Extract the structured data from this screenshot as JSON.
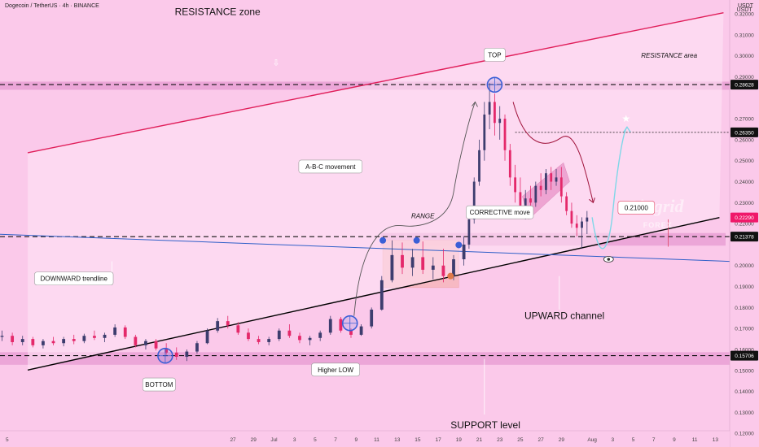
{
  "header": {
    "symbol_title": "Dogecoin / TetherUS · 4h · BINANCE",
    "currency": "USDT"
  },
  "colors": {
    "background": "#fbc9ea",
    "zone_fill": "#e79ad2",
    "candle_up": "#3d3d6e",
    "candle_down": "#e4286a",
    "resistance_line": "#e01e5a",
    "channel_line": "#000000",
    "downtrend_line": "#2f5fc8",
    "marker_blue": "#3b5fd6",
    "projection": "#7fd7e8"
  },
  "chart_data": {
    "type": "candlestick",
    "title": "Dogecoin / TetherUS · 4h · BINANCE",
    "y_axis": {
      "unit": "USDT",
      "ylim": [
        0.1135,
        0.3266
      ],
      "ticks": [
        0.32,
        0.31,
        0.3,
        0.29,
        0.27,
        0.26,
        0.25,
        0.24,
        0.23,
        0.22,
        0.2,
        0.19,
        0.18,
        0.17,
        0.16,
        0.15,
        0.14,
        0.13,
        0.12
      ],
      "tick_labels": [
        "0.32000",
        "0.31000",
        "0.30000",
        "0.29000",
        "0.27000",
        "0.26000",
        "0.25000",
        "0.24000",
        "0.23000",
        "0.22000",
        "0.20000",
        "0.19000",
        "0.18000",
        "0.17000",
        "0.16000",
        "0.15000",
        "0.14000",
        "0.13000",
        "0.12000"
      ]
    },
    "x_axis": {
      "tick_labels": [
        "5",
        "27",
        "29",
        "Jul",
        "3",
        "5",
        "7",
        "9",
        "11",
        "13",
        "15",
        "17",
        "19",
        "21",
        "23",
        "25",
        "27",
        "29",
        "Aug",
        "3",
        "5",
        "7",
        "9",
        "11",
        "13"
      ],
      "tick_day_index": [
        -26,
        -4,
        -2,
        0,
        2,
        4,
        6,
        8,
        10,
        12,
        14,
        16,
        18,
        20,
        22,
        24,
        26,
        28,
        31,
        33,
        35,
        37,
        39,
        41,
        43
      ],
      "x_range_days": [
        -26.7,
        44.4
      ]
    },
    "price_labels": [
      {
        "value": 0.28628,
        "text": "0.28628",
        "style": "black"
      },
      {
        "value": 0.2635,
        "text": "0.26350",
        "style": "black"
      },
      {
        "value": 0.2229,
        "text": "0.22290",
        "style": "red"
      },
      {
        "value": 0.21378,
        "text": "0.21378",
        "style": "black"
      },
      {
        "value": 0.15706,
        "text": "0.15706",
        "style": "black"
      }
    ],
    "horizontal_levels": [
      {
        "value": 0.28628,
        "style": "dashed"
      },
      {
        "value": 0.2635,
        "style": "dotted"
      },
      {
        "value": 0.21378,
        "style": "dashed"
      },
      {
        "value": 0.15706,
        "style": "dashed"
      }
    ],
    "zones": [
      {
        "name": "resistance band",
        "from": 0.2838,
        "to": 0.2877
      },
      {
        "name": "support band",
        "from": 0.1527,
        "to": 0.1587
      },
      {
        "name": "breakout band",
        "from": 0.2095,
        "to": 0.2155
      },
      {
        "name": "range box",
        "from": 0.1895,
        "to": 0.2121
      }
    ],
    "trendlines": [
      {
        "name": "resistance line",
        "points": [
          [
            -24,
            0.2538
          ],
          [
            43.8,
            0.3205
          ]
        ]
      },
      {
        "name": "upward channel",
        "points": [
          [
            -24,
            0.1502
          ],
          [
            43.4,
            0.2229
          ]
        ]
      },
      {
        "name": "downward trendline",
        "points": [
          [
            -26.7,
            0.2149
          ],
          [
            44.4,
            0.202
          ]
        ]
      }
    ],
    "candles": [
      {
        "d": -26.5,
        "o": 0.166,
        "h": 0.169,
        "l": 0.164,
        "c": 0.1665
      },
      {
        "d": -25.5,
        "o": 0.1665,
        "h": 0.168,
        "l": 0.162,
        "c": 0.1635
      },
      {
        "d": -24.5,
        "o": 0.1635,
        "h": 0.1665,
        "l": 0.162,
        "c": 0.165
      },
      {
        "d": -23.5,
        "o": 0.165,
        "h": 0.166,
        "l": 0.161,
        "c": 0.162
      },
      {
        "d": -22.5,
        "o": 0.162,
        "h": 0.165,
        "l": 0.1605,
        "c": 0.164
      },
      {
        "d": -21.5,
        "o": 0.164,
        "h": 0.166,
        "l": 0.162,
        "c": 0.163
      },
      {
        "d": -20.5,
        "o": 0.163,
        "h": 0.166,
        "l": 0.1615,
        "c": 0.165
      },
      {
        "d": -19.5,
        "o": 0.165,
        "h": 0.167,
        "l": 0.1625,
        "c": 0.164
      },
      {
        "d": -18.5,
        "o": 0.164,
        "h": 0.1675,
        "l": 0.163,
        "c": 0.1665
      },
      {
        "d": -17.5,
        "o": 0.1665,
        "h": 0.169,
        "l": 0.1645,
        "c": 0.1655
      },
      {
        "d": -16.5,
        "o": 0.1655,
        "h": 0.168,
        "l": 0.1635,
        "c": 0.167
      },
      {
        "d": -15.5,
        "o": 0.167,
        "h": 0.172,
        "l": 0.166,
        "c": 0.1705
      },
      {
        "d": -14.5,
        "o": 0.1705,
        "h": 0.1715,
        "l": 0.165,
        "c": 0.166
      },
      {
        "d": -13.5,
        "o": 0.166,
        "h": 0.167,
        "l": 0.161,
        "c": 0.162
      },
      {
        "d": -12.5,
        "o": 0.162,
        "h": 0.165,
        "l": 0.16,
        "c": 0.164
      },
      {
        "d": -11.5,
        "o": 0.164,
        "h": 0.165,
        "l": 0.1595,
        "c": 0.1605
      },
      {
        "d": -10.5,
        "o": 0.1605,
        "h": 0.163,
        "l": 0.1575,
        "c": 0.1585
      },
      {
        "d": -9.5,
        "o": 0.1585,
        "h": 0.161,
        "l": 0.155,
        "c": 0.1565
      },
      {
        "d": -8.5,
        "o": 0.1565,
        "h": 0.16,
        "l": 0.1545,
        "c": 0.159
      },
      {
        "d": -7.5,
        "o": 0.159,
        "h": 0.164,
        "l": 0.158,
        "c": 0.163
      },
      {
        "d": -6.5,
        "o": 0.163,
        "h": 0.17,
        "l": 0.1625,
        "c": 0.169
      },
      {
        "d": -5.5,
        "o": 0.169,
        "h": 0.175,
        "l": 0.168,
        "c": 0.1735
      },
      {
        "d": -4.5,
        "o": 0.1735,
        "h": 0.176,
        "l": 0.17,
        "c": 0.1715
      },
      {
        "d": -3.5,
        "o": 0.1715,
        "h": 0.173,
        "l": 0.167,
        "c": 0.168
      },
      {
        "d": -2.5,
        "o": 0.168,
        "h": 0.17,
        "l": 0.164,
        "c": 0.165
      },
      {
        "d": -1.5,
        "o": 0.165,
        "h": 0.1665,
        "l": 0.1625,
        "c": 0.1635
      },
      {
        "d": -0.5,
        "o": 0.1635,
        "h": 0.166,
        "l": 0.162,
        "c": 0.165
      },
      {
        "d": 0.5,
        "o": 0.165,
        "h": 0.17,
        "l": 0.164,
        "c": 0.169
      },
      {
        "d": 1.5,
        "o": 0.169,
        "h": 0.172,
        "l": 0.1655,
        "c": 0.1665
      },
      {
        "d": 2.5,
        "o": 0.1665,
        "h": 0.168,
        "l": 0.163,
        "c": 0.1645
      },
      {
        "d": 3.5,
        "o": 0.1645,
        "h": 0.1665,
        "l": 0.162,
        "c": 0.1655
      },
      {
        "d": 4.5,
        "o": 0.1655,
        "h": 0.169,
        "l": 0.164,
        "c": 0.168
      },
      {
        "d": 5.5,
        "o": 0.168,
        "h": 0.176,
        "l": 0.167,
        "c": 0.1745
      },
      {
        "d": 6.5,
        "o": 0.1745,
        "h": 0.1755,
        "l": 0.168,
        "c": 0.169
      },
      {
        "d": 7.5,
        "o": 0.169,
        "h": 0.17,
        "l": 0.1655,
        "c": 0.167
      },
      {
        "d": 8.5,
        "o": 0.167,
        "h": 0.172,
        "l": 0.1665,
        "c": 0.171
      },
      {
        "d": 9.5,
        "o": 0.171,
        "h": 0.18,
        "l": 0.17,
        "c": 0.179
      },
      {
        "d": 10.5,
        "o": 0.179,
        "h": 0.195,
        "l": 0.1785,
        "c": 0.193
      },
      {
        "d": 11.5,
        "o": 0.193,
        "h": 0.212,
        "l": 0.192,
        "c": 0.205
      },
      {
        "d": 12.5,
        "o": 0.205,
        "h": 0.211,
        "l": 0.196,
        "c": 0.199
      },
      {
        "d": 13.5,
        "o": 0.199,
        "h": 0.208,
        "l": 0.195,
        "c": 0.204
      },
      {
        "d": 14.5,
        "o": 0.204,
        "h": 0.2115,
        "l": 0.196,
        "c": 0.198
      },
      {
        "d": 15.5,
        "o": 0.198,
        "h": 0.204,
        "l": 0.1935,
        "c": 0.2
      },
      {
        "d": 16.5,
        "o": 0.2,
        "h": 0.208,
        "l": 0.192,
        "c": 0.195
      },
      {
        "d": 17.5,
        "o": 0.195,
        "h": 0.205,
        "l": 0.193,
        "c": 0.203
      },
      {
        "d": 18.5,
        "o": 0.203,
        "h": 0.214,
        "l": 0.2,
        "c": 0.21
      },
      {
        "d": 19.0,
        "o": 0.21,
        "h": 0.224,
        "l": 0.208,
        "c": 0.222
      },
      {
        "d": 19.5,
        "o": 0.222,
        "h": 0.242,
        "l": 0.22,
        "c": 0.24
      },
      {
        "d": 20.0,
        "o": 0.24,
        "h": 0.26,
        "l": 0.238,
        "c": 0.255
      },
      {
        "d": 20.5,
        "o": 0.255,
        "h": 0.278,
        "l": 0.25,
        "c": 0.272
      },
      {
        "d": 21.0,
        "o": 0.272,
        "h": 0.287,
        "l": 0.265,
        "c": 0.278
      },
      {
        "d": 21.5,
        "o": 0.278,
        "h": 0.282,
        "l": 0.262,
        "c": 0.268
      },
      {
        "d": 22.0,
        "o": 0.268,
        "h": 0.276,
        "l": 0.26,
        "c": 0.27
      },
      {
        "d": 22.5,
        "o": 0.27,
        "h": 0.272,
        "l": 0.25,
        "c": 0.255
      },
      {
        "d": 23.0,
        "o": 0.255,
        "h": 0.258,
        "l": 0.238,
        "c": 0.242
      },
      {
        "d": 23.5,
        "o": 0.242,
        "h": 0.248,
        "l": 0.23,
        "c": 0.235
      },
      {
        "d": 24.0,
        "o": 0.235,
        "h": 0.242,
        "l": 0.225,
        "c": 0.228
      },
      {
        "d": 24.5,
        "o": 0.228,
        "h": 0.236,
        "l": 0.222,
        "c": 0.232
      },
      {
        "d": 25.0,
        "o": 0.232,
        "h": 0.238,
        "l": 0.226,
        "c": 0.23
      },
      {
        "d": 25.5,
        "o": 0.23,
        "h": 0.24,
        "l": 0.228,
        "c": 0.238
      },
      {
        "d": 26.0,
        "o": 0.238,
        "h": 0.244,
        "l": 0.233,
        "c": 0.236
      },
      {
        "d": 26.5,
        "o": 0.236,
        "h": 0.246,
        "l": 0.234,
        "c": 0.244
      },
      {
        "d": 27.0,
        "o": 0.244,
        "h": 0.247,
        "l": 0.236,
        "c": 0.24
      },
      {
        "d": 27.5,
        "o": 0.24,
        "h": 0.246,
        "l": 0.238,
        "c": 0.242
      },
      {
        "d": 28.0,
        "o": 0.242,
        "h": 0.247,
        "l": 0.23,
        "c": 0.233
      },
      {
        "d": 28.5,
        "o": 0.233,
        "h": 0.235,
        "l": 0.224,
        "c": 0.226
      },
      {
        "d": 29.0,
        "o": 0.226,
        "h": 0.23,
        "l": 0.218,
        "c": 0.22
      },
      {
        "d": 29.5,
        "o": 0.22,
        "h": 0.224,
        "l": 0.214,
        "c": 0.218
      },
      {
        "d": 30.0,
        "o": 0.218,
        "h": 0.223,
        "l": 0.208,
        "c": 0.221
      },
      {
        "d": 30.5,
        "o": 0.221,
        "h": 0.226,
        "l": 0.215,
        "c": 0.2229
      }
    ],
    "annotations": [
      {
        "text": "RESISTANCE zone",
        "x_day": -5.5,
        "y": 0.3195,
        "size": 12
      },
      {
        "text": "RESISTANCE area",
        "x_day": 38.5,
        "y": 0.299,
        "size": 8,
        "italic": true
      },
      {
        "text": "RANGE",
        "x_day": 14.5,
        "y": 0.2225,
        "size": 8,
        "italic": true
      },
      {
        "text": "UPWARD channel",
        "x_day": 28.3,
        "y": 0.1745,
        "size": 12
      },
      {
        "text": "SUPPORT level",
        "x_day": 20.6,
        "y": 0.1225,
        "size": 12
      }
    ],
    "callouts": [
      {
        "text": "TOP",
        "x_day": 21.5,
        "y": 0.3005
      },
      {
        "text": "A-B-C movement",
        "x_day": 5.5,
        "y": 0.2472
      },
      {
        "text": "CORRECTIVE move",
        "x_day": 22.0,
        "y": 0.2254
      },
      {
        "text": "0.21000",
        "x_day": 35.3,
        "y": 0.2276
      },
      {
        "text": "DOWNWARD trendline",
        "x_day": -19.5,
        "y": 0.1938
      },
      {
        "text": "BOTTOM",
        "x_day": -11.2,
        "y": 0.1433
      },
      {
        "text": "Higher LOW",
        "x_day": 6.0,
        "y": 0.1504
      }
    ],
    "markers": [
      {
        "kind": "circle",
        "x_day": 21.5,
        "y": 0.2862
      },
      {
        "kind": "circle",
        "x_day": -10.6,
        "y": 0.157
      },
      {
        "kind": "circle",
        "x_day": 7.4,
        "y": 0.1725
      },
      {
        "kind": "dot",
        "x_day": 10.6,
        "y": 0.212
      },
      {
        "kind": "dot",
        "x_day": 13.9,
        "y": 0.212
      },
      {
        "kind": "dot",
        "x_day": 18.0,
        "y": 0.2098
      }
    ],
    "watermark": {
      "line1": "Lingrid",
      "line2": "FOREX"
    }
  }
}
